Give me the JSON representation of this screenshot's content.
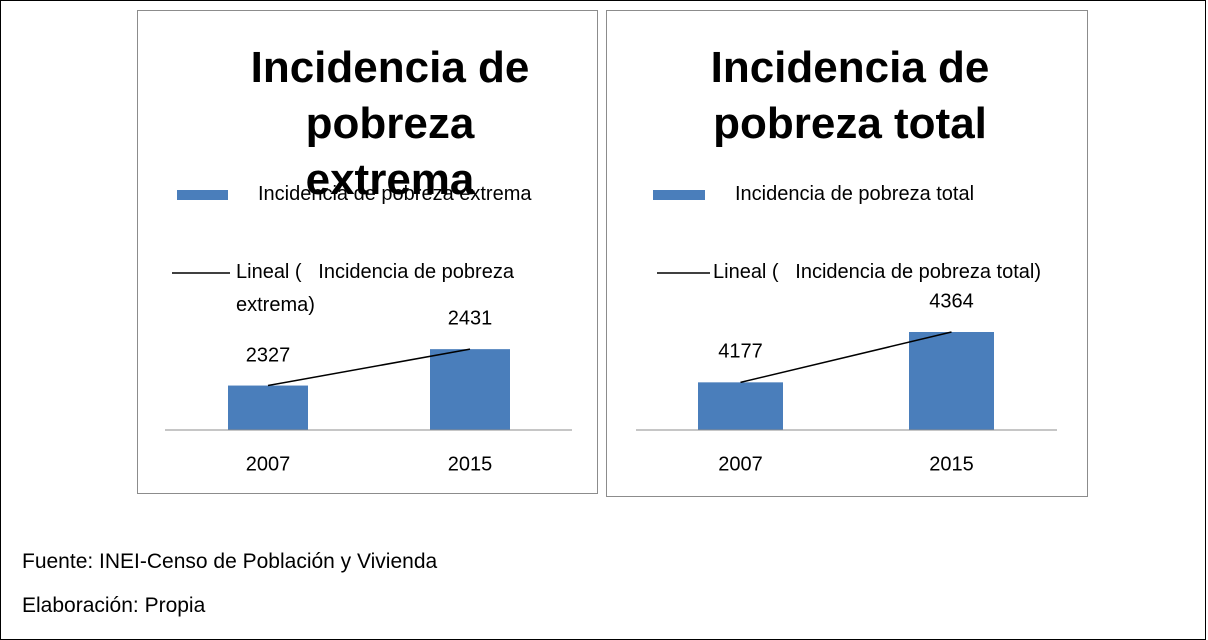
{
  "chart_data": [
    {
      "type": "bar",
      "title": "Incidencia de pobreza extrema",
      "categories": [
        "2007",
        "2015"
      ],
      "series": [
        {
          "name": "Incidencia de pobreza extrema",
          "color": "#4a7ebb",
          "values": [
            2327,
            2431
          ]
        }
      ],
      "trendline": {
        "name": "Lineal (   Incidencia de pobreza extrema)",
        "color": "#000000"
      },
      "ylim": [
        2200,
        2600
      ]
    },
    {
      "type": "bar",
      "title": "Incidencia de pobreza total",
      "categories": [
        "2007",
        "2015"
      ],
      "series": [
        {
          "name": "Incidencia de pobreza total",
          "color": "#4a7ebb",
          "values": [
            4177,
            4364
          ]
        }
      ],
      "trendline": {
        "name": "Lineal (   Incidencia de pobreza total)",
        "color": "#000000"
      },
      "ylim": [
        4000,
        4520
      ]
    }
  ],
  "footer": {
    "source": "Fuente: INEI-Censo de Población y Vivienda",
    "credit": "Elaboración: Propia"
  }
}
